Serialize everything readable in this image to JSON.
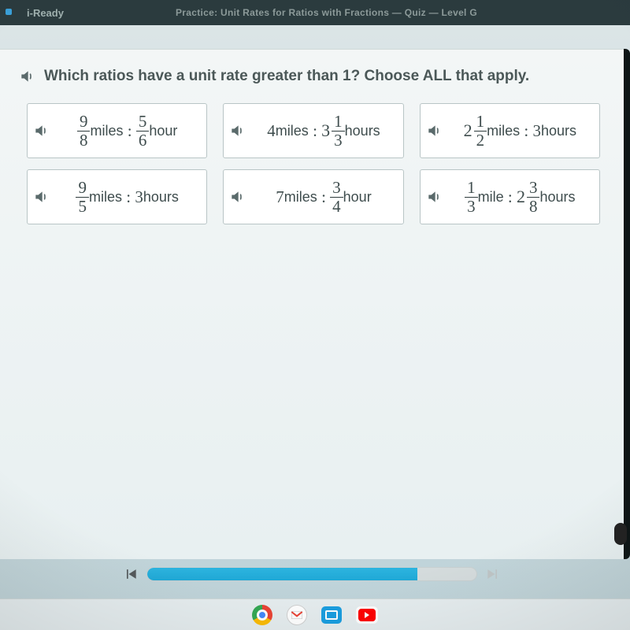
{
  "brand": "i-Ready",
  "header_title": "Practice: Unit Rates for Ratios with Fractions — Quiz — Level G",
  "question": "Which ratios have a unit rate greater than 1? Choose ALL that apply.",
  "options": [
    {
      "a": {
        "type": "frac",
        "n": "9",
        "d": "8",
        "unit": "miles"
      },
      "b": {
        "type": "frac",
        "n": "5",
        "d": "6",
        "unit": "hour"
      }
    },
    {
      "a": {
        "type": "int",
        "v": "4",
        "unit": "miles"
      },
      "b": {
        "type": "mixed",
        "w": "3",
        "n": "1",
        "d": "3",
        "unit": "hours"
      }
    },
    {
      "a": {
        "type": "mixed",
        "w": "2",
        "n": "1",
        "d": "2",
        "unit": "miles"
      },
      "b": {
        "type": "int",
        "v": "3",
        "unit": "hours"
      }
    },
    {
      "a": {
        "type": "frac",
        "n": "9",
        "d": "5",
        "unit": "miles"
      },
      "b": {
        "type": "int",
        "v": "3",
        "unit": "hours"
      }
    },
    {
      "a": {
        "type": "int",
        "v": "7",
        "unit": "miles"
      },
      "b": {
        "type": "frac",
        "n": "3",
        "d": "4",
        "unit": "hour"
      }
    },
    {
      "a": {
        "type": "frac",
        "n": "1",
        "d": "3",
        "unit": "mile"
      },
      "b": {
        "type": "mixed",
        "w": "2",
        "n": "3",
        "d": "8",
        "unit": "hours"
      }
    }
  ],
  "progress_pct": 82,
  "colors": {
    "topbar": "#2b3b3e",
    "card": "#eef3f4",
    "option_border": "#b9c5c6",
    "text": "#3e4c4d",
    "progress_fill": "#1fa8d6"
  },
  "taskbar": [
    "chrome",
    "gmail",
    "files",
    "youtube"
  ]
}
